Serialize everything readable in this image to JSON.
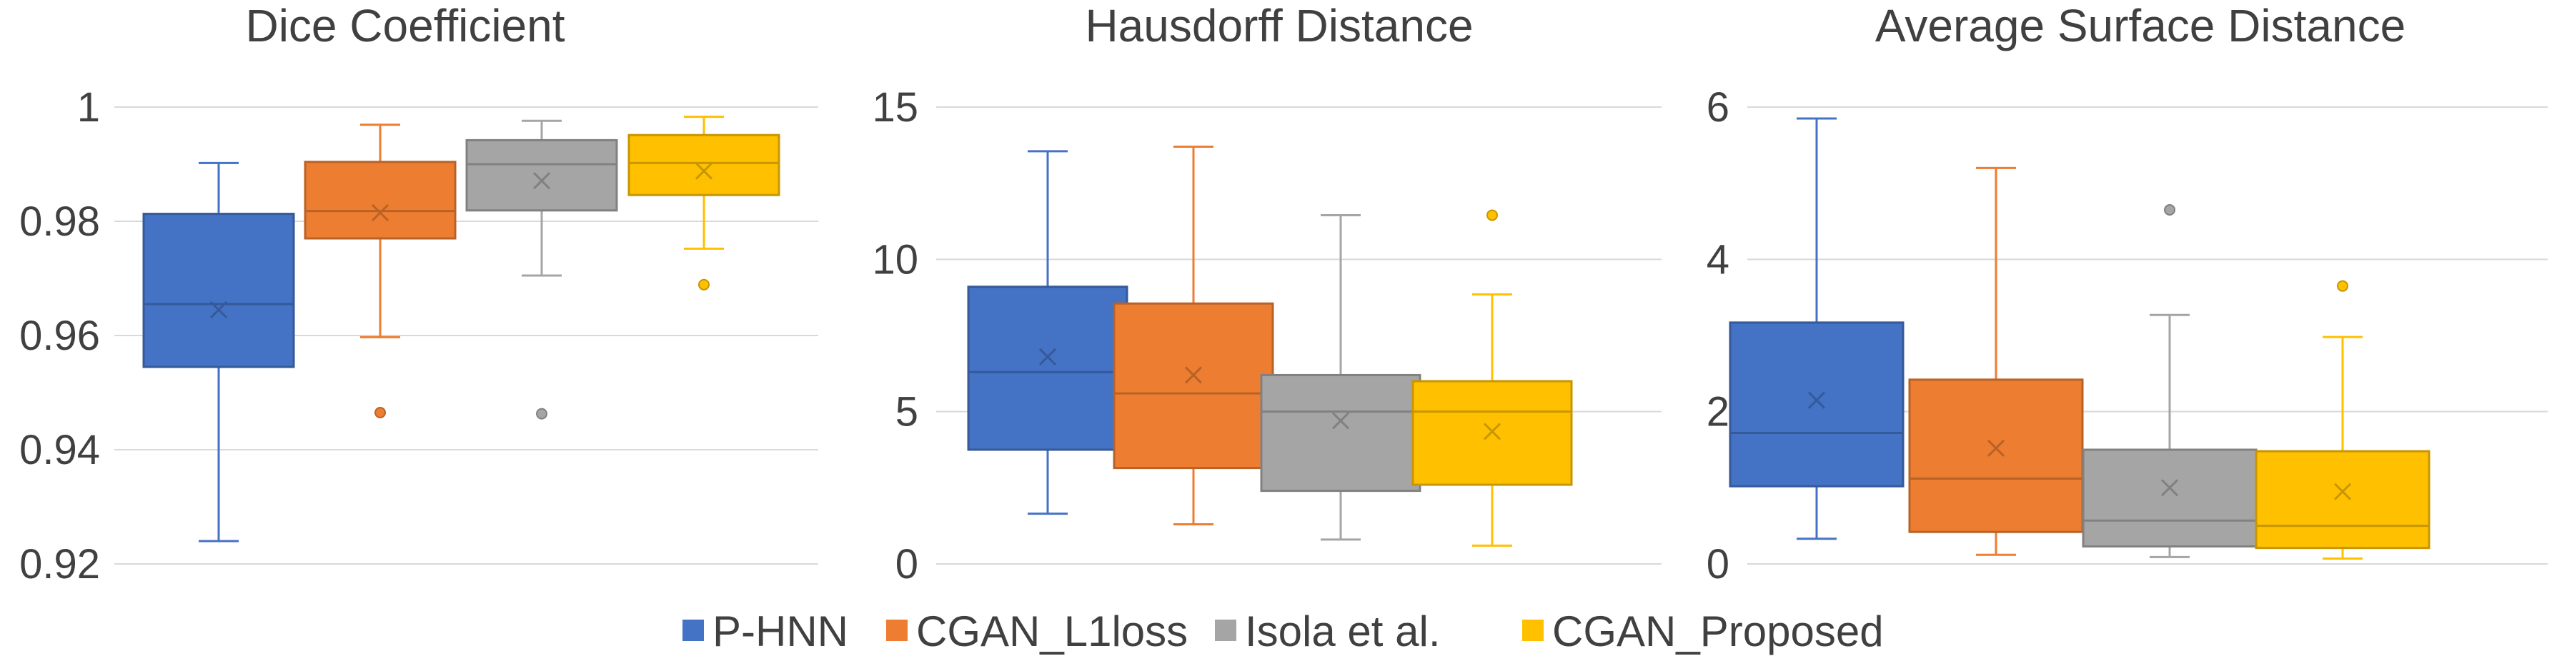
{
  "figure": {
    "legend": [
      {
        "name": "P-HNN",
        "color": "#4472C4"
      },
      {
        "name": "CGAN_L1loss",
        "color": "#ED7D31"
      },
      {
        "name": "Isola et al.",
        "color": "#A5A5A5"
      },
      {
        "name": "CGAN_Proposed",
        "color": "#FFC000"
      }
    ]
  },
  "chart_data": [
    {
      "type": "box",
      "title": "Dice Coefficient",
      "ylim": [
        0.92,
        1.0
      ],
      "yticks": [
        "0.92",
        "0.94",
        "0.96",
        "0.98",
        "1"
      ],
      "grid": true,
      "legend_position": "bottom",
      "series": [
        {
          "name": "P-HNN",
          "color": "#4472C4",
          "whisker_low": 0.924,
          "q1": 0.9545,
          "median": 0.9655,
          "q3": 0.9813,
          "whisker_high": 0.9902,
          "mean": 0.9645,
          "outliers": []
        },
        {
          "name": "CGAN_L1loss",
          "color": "#ED7D31",
          "whisker_low": 0.9597,
          "q1": 0.977,
          "median": 0.9818,
          "q3": 0.9904,
          "whisker_high": 0.9969,
          "mean": 0.9815,
          "outliers": [
            0.9465
          ]
        },
        {
          "name": "Isola et al.",
          "color": "#A5A5A5",
          "whisker_low": 0.9705,
          "q1": 0.9819,
          "median": 0.99,
          "q3": 0.9942,
          "whisker_high": 0.9976,
          "mean": 0.9871,
          "outliers": [
            0.9463
          ]
        },
        {
          "name": "CGAN_Proposed",
          "color": "#FFC000",
          "whisker_low": 0.9752,
          "q1": 0.9846,
          "median": 0.9902,
          "q3": 0.9951,
          "whisker_high": 0.9983,
          "mean": 0.9888,
          "outliers": [
            0.9689
          ]
        }
      ]
    },
    {
      "type": "box",
      "title": "Hausdorff Distance",
      "ylim": [
        0,
        15
      ],
      "yticks": [
        "0",
        "5",
        "10",
        "15"
      ],
      "grid": true,
      "legend_position": "bottom",
      "series": [
        {
          "name": "P-HNN",
          "color": "#4472C4",
          "whisker_low": 1.65,
          "q1": 3.75,
          "median": 6.3,
          "q3": 9.1,
          "whisker_high": 13.55,
          "mean": 6.8,
          "outliers": []
        },
        {
          "name": "CGAN_L1loss",
          "color": "#ED7D31",
          "whisker_low": 1.3,
          "q1": 3.15,
          "median": 5.6,
          "q3": 8.55,
          "whisker_high": 13.7,
          "mean": 6.2,
          "outliers": []
        },
        {
          "name": "Isola et al.",
          "color": "#A5A5A5",
          "whisker_low": 0.8,
          "q1": 2.4,
          "median": 5.0,
          "q3": 6.2,
          "whisker_high": 11.45,
          "mean": 4.7,
          "outliers": []
        },
        {
          "name": "CGAN_Proposed",
          "color": "#FFC000",
          "whisker_low": 0.6,
          "q1": 2.6,
          "median": 5.0,
          "q3": 6.0,
          "whisker_high": 8.85,
          "mean": 4.35,
          "outliers": [
            11.45
          ]
        }
      ]
    },
    {
      "type": "box",
      "title": "Average Surface Distance",
      "ylim": [
        0,
        6
      ],
      "yticks": [
        "0",
        "2",
        "4",
        "6"
      ],
      "grid": true,
      "legend_position": "bottom",
      "series": [
        {
          "name": "P-HNN",
          "color": "#4472C4",
          "whisker_low": 0.33,
          "q1": 1.02,
          "median": 1.72,
          "q3": 3.17,
          "whisker_high": 5.85,
          "mean": 2.15,
          "outliers": []
        },
        {
          "name": "CGAN_L1loss",
          "color": "#ED7D31",
          "whisker_low": 0.12,
          "q1": 0.42,
          "median": 1.12,
          "q3": 2.42,
          "whisker_high": 5.2,
          "mean": 1.52,
          "outliers": []
        },
        {
          "name": "Isola et al.",
          "color": "#A5A5A5",
          "whisker_low": 0.09,
          "q1": 0.23,
          "median": 0.57,
          "q3": 1.5,
          "whisker_high": 3.27,
          "mean": 1.0,
          "outliers": [
            4.65
          ]
        },
        {
          "name": "CGAN_Proposed",
          "color": "#FFC000",
          "whisker_low": 0.07,
          "q1": 0.21,
          "median": 0.5,
          "q3": 1.48,
          "whisker_high": 2.98,
          "mean": 0.95,
          "outliers": [
            3.65
          ]
        }
      ]
    }
  ]
}
